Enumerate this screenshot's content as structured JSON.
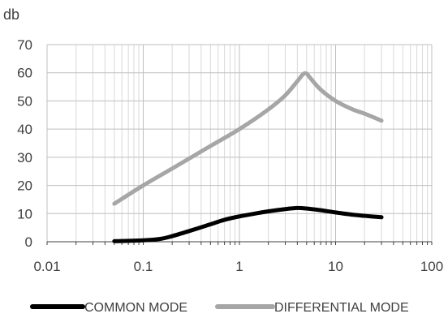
{
  "chart_data": {
    "type": "line",
    "title": "",
    "xlabel": "",
    "ylabel": "db",
    "x_scale": "log",
    "xlim": [
      0.01,
      100
    ],
    "ylim": [
      0,
      70
    ],
    "x_ticks": [
      0.01,
      0.1,
      1,
      10,
      100
    ],
    "x_tick_labels": [
      "0.01",
      "0.1",
      "1",
      "10",
      "100"
    ],
    "y_ticks": [
      0,
      10,
      20,
      30,
      40,
      50,
      60,
      70
    ],
    "y_tick_labels": [
      "0",
      "10",
      "20",
      "30",
      "40",
      "50",
      "60",
      "70"
    ],
    "grid": true,
    "legend_position": "bottom",
    "series": [
      {
        "name": "COMMON MODE",
        "color": "#000000",
        "x": [
          0.05,
          0.1,
          0.15,
          0.2,
          0.3,
          0.5,
          0.7,
          1,
          1.5,
          2,
          3,
          4,
          5,
          7,
          10,
          15,
          20,
          30
        ],
        "y": [
          0.2,
          0.5,
          1,
          2,
          3.8,
          6.2,
          7.8,
          9,
          10.1,
          10.8,
          11.6,
          12,
          11.8,
          11.2,
          10.4,
          9.6,
          9.2,
          8.7
        ]
      },
      {
        "name": "DIFFERENTIAL MODE",
        "color": "#a6a6a6",
        "x": [
          0.05,
          0.1,
          0.2,
          0.5,
          1,
          2,
          3,
          4,
          4.6,
          5,
          5.5,
          7,
          10,
          15,
          20,
          30
        ],
        "y": [
          13.5,
          20,
          26,
          34,
          40,
          47,
          52,
          57,
          59.5,
          59.7,
          58,
          54,
          50,
          47,
          45.5,
          43
        ]
      }
    ]
  }
}
